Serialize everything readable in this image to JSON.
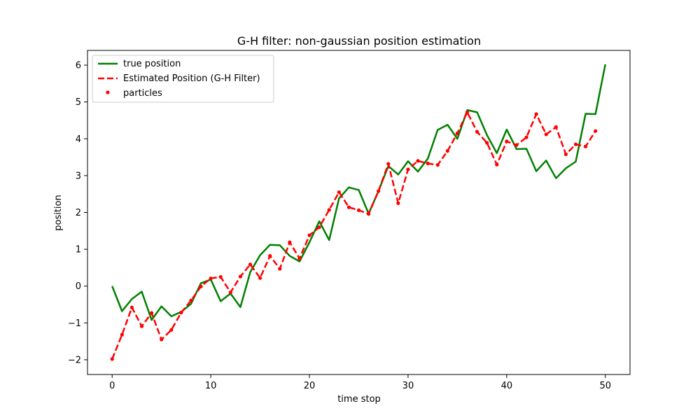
{
  "chart_data": {
    "type": "line",
    "title": "G-H filter: non-gaussian position estimation",
    "xlabel": "time stop",
    "ylabel": "position",
    "xlim": [
      -2.5,
      52.5
    ],
    "ylim": [
      -2.4,
      6.4
    ],
    "xticks": [
      0,
      10,
      20,
      30,
      40,
      50
    ],
    "yticks": [
      -2,
      -1,
      0,
      1,
      2,
      3,
      4,
      5,
      6
    ],
    "xtick_labels": [
      "0",
      "10",
      "20",
      "30",
      "40",
      "50"
    ],
    "ytick_labels": [
      "−2",
      "−1",
      "0",
      "1",
      "2",
      "3",
      "4",
      "5",
      "6"
    ],
    "grid": false,
    "legend_position": "upper-left",
    "series": [
      {
        "name": "true position",
        "style": "solid-line",
        "color": "#008000",
        "x": [
          0,
          1,
          2,
          3,
          4,
          5,
          6,
          7,
          8,
          9,
          10,
          11,
          12,
          13,
          14,
          15,
          16,
          17,
          18,
          19,
          20,
          21,
          22,
          23,
          24,
          25,
          26,
          27,
          28,
          29,
          30,
          31,
          32,
          33,
          34,
          35,
          36,
          37,
          38,
          39,
          40,
          41,
          42,
          43,
          44,
          45,
          46,
          47,
          48,
          49,
          50
        ],
        "y": [
          0.0,
          -0.68,
          -0.35,
          -0.15,
          -0.92,
          -0.55,
          -0.82,
          -0.7,
          -0.48,
          0.08,
          0.18,
          -0.41,
          -0.2,
          -0.57,
          0.38,
          0.84,
          1.12,
          1.11,
          0.82,
          0.67,
          1.19,
          1.76,
          1.25,
          2.38,
          2.68,
          2.61,
          1.97,
          2.58,
          3.26,
          3.03,
          3.39,
          3.11,
          3.46,
          4.24,
          4.38,
          4.0,
          4.78,
          4.72,
          4.1,
          3.61,
          4.25,
          3.72,
          3.73,
          3.12,
          3.41,
          2.93,
          3.2,
          3.38,
          4.68,
          4.67,
          6.02
        ]
      },
      {
        "name": "Estimated Position (G-H Filter)",
        "style": "dashed-line",
        "color": "#ff0000",
        "x": [
          0,
          1,
          2,
          3,
          4,
          5,
          6,
          7,
          8,
          9,
          10,
          11,
          12,
          13,
          14,
          15,
          16,
          17,
          18,
          19,
          20,
          21,
          22,
          23,
          24,
          25,
          26,
          27,
          28,
          29,
          30,
          31,
          32,
          33,
          34,
          35,
          36,
          37,
          38,
          39,
          40,
          41,
          42,
          43,
          44,
          45,
          46,
          47,
          48,
          49
        ],
        "y": [
          -1.98,
          -1.32,
          -0.58,
          -1.09,
          -0.73,
          -1.45,
          -1.19,
          -0.72,
          -0.39,
          -0.01,
          0.21,
          0.25,
          -0.17,
          0.26,
          0.59,
          0.22,
          0.82,
          0.47,
          1.19,
          0.75,
          1.38,
          1.6,
          2.07,
          2.55,
          2.14,
          2.06,
          1.96,
          2.58,
          3.32,
          2.25,
          3.17,
          3.4,
          3.33,
          3.29,
          3.67,
          4.15,
          4.72,
          4.19,
          3.89,
          3.3,
          3.93,
          3.83,
          4.04,
          4.67,
          4.12,
          4.32,
          3.58,
          3.85,
          3.79,
          4.21
        ]
      },
      {
        "name": "particles",
        "style": "scatter",
        "color": "#ff0000",
        "x": [
          0,
          1,
          2,
          3,
          4,
          5,
          6,
          7,
          8,
          9,
          10,
          11,
          12,
          13,
          14,
          15,
          16,
          17,
          18,
          19,
          20,
          21,
          22,
          23,
          24,
          25,
          26,
          27,
          28,
          29,
          30,
          31,
          32,
          33,
          34,
          35,
          36,
          37,
          38,
          39,
          40,
          41,
          42,
          43,
          44,
          45,
          46,
          47,
          48,
          49
        ],
        "y": [
          -1.98,
          -1.32,
          -0.58,
          -1.09,
          -0.73,
          -1.45,
          -1.19,
          -0.72,
          -0.39,
          -0.01,
          0.21,
          0.25,
          -0.17,
          0.26,
          0.59,
          0.22,
          0.82,
          0.47,
          1.19,
          0.75,
          1.38,
          1.6,
          2.07,
          2.55,
          2.14,
          2.06,
          1.96,
          2.58,
          3.32,
          2.25,
          3.17,
          3.4,
          3.33,
          3.29,
          3.67,
          4.15,
          4.72,
          4.19,
          3.89,
          3.3,
          3.93,
          3.83,
          4.04,
          4.67,
          4.12,
          4.32,
          3.58,
          3.85,
          3.79,
          4.21
        ]
      }
    ]
  }
}
